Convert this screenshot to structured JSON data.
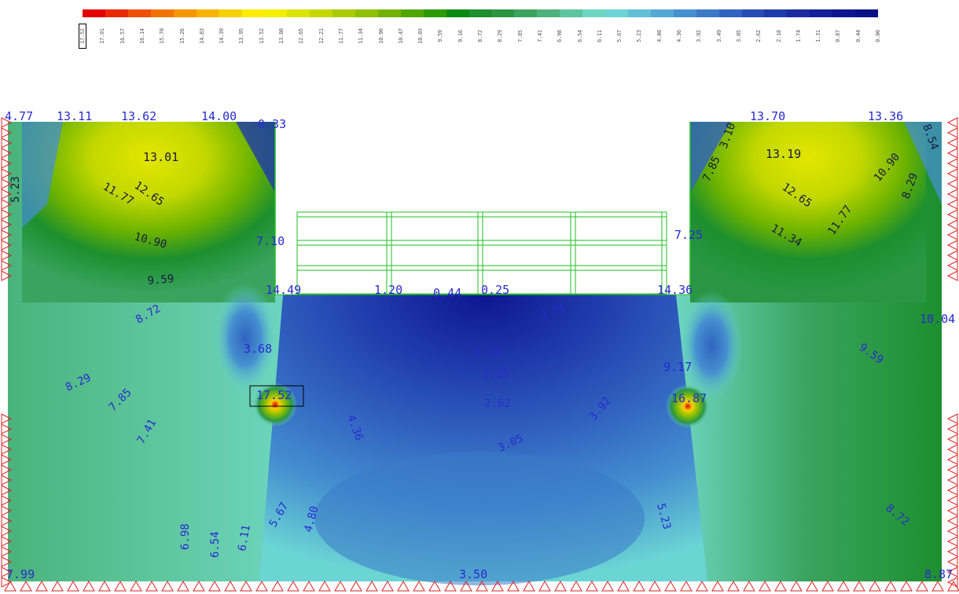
{
  "legend": {
    "colors": [
      "#e30000",
      "#ea2a00",
      "#f04f00",
      "#f27400",
      "#f69600",
      "#f7b300",
      "#f7d000",
      "#fbec00",
      "#f2ef00",
      "#dbe300",
      "#c4d800",
      "#a9cb00",
      "#8fc000",
      "#71b300",
      "#52a600",
      "#2d9a00",
      "#0a8a12",
      "#1c8f2e",
      "#2a9644",
      "#3aa35e",
      "#4ab37c",
      "#5dc59b",
      "#6dd6c0",
      "#6bd5d4",
      "#5fc0d6",
      "#52a9d6",
      "#4590d0",
      "#3a7ac8",
      "#3163c0",
      "#284cb6",
      "#1f3aab",
      "#1a2ca0",
      "#13209a",
      "#0d1690",
      "#081087"
    ],
    "labels": [
      "17.52",
      "17.01",
      "16.57",
      "16.14",
      "15.70",
      "15.26",
      "14.83",
      "14.39",
      "13.95",
      "13.52",
      "13.08",
      "12.65",
      "12.21",
      "11.77",
      "11.34",
      "10.90",
      "10.47",
      "10.03",
      "9.59",
      "9.16",
      "8.72",
      "8.29",
      "7.85",
      "7.41",
      "6.98",
      "6.54",
      "6.11",
      "5.67",
      "5.23",
      "4.80",
      "4.36",
      "3.92",
      "3.49",
      "3.05",
      "2.62",
      "2.18",
      "1.74",
      "1.31",
      "0.87",
      "0.44",
      "0.00"
    ]
  },
  "field_labels": {
    "top_left_corner": "4.77",
    "top_l1": "13.11",
    "top_l2": "13.62",
    "top_l3": "14.00",
    "top_l4": "0.33",
    "top_r1": "13.70",
    "top_r2": "13.36",
    "left_wall": "7.10",
    "right_wall": "7.25",
    "left_toe": "14.49",
    "right_toe": "14.36",
    "exc_1": "1.20",
    "exc_2": "0.44",
    "exc_3": "0.25",
    "exc_4": "1.31",
    "left_anchor": "3.68",
    "left_peak": "17.52",
    "right_anchor": "9.17",
    "right_peak": "16.87",
    "right_edge": "10.04",
    "bottom_left": "7.99",
    "bottom_mid": "3.50",
    "bottom_right": "8.87",
    "lz_13_01": "13.01",
    "lz_12_65": "12.65",
    "lz_11_77": "11.77",
    "lz_10_90": "10.90",
    "lz_9_59": "9.59",
    "lz_8_72": "8.72",
    "lz_8_29": "8.29",
    "lz_7_85": "7.85",
    "lz_7_41": "7.41",
    "lz_6_98": "6.98",
    "lz_6_54": "6.54",
    "lz_6_11": "6.11",
    "lz_5_67": "5.67",
    "lz_4_80": "4.80",
    "lz_4_36": "4.36",
    "lz_5_23_left": "5.23",
    "cz_1_74": "1.74",
    "cz_2_18": "2.18",
    "cz_2_62": "2.62",
    "cz_3_05": "3.05",
    "cz_3_92": "3.92",
    "cz_5_23": "5.23",
    "rz_13_19": "13.19",
    "rz_12_65": "12.65",
    "rz_11_77": "11.77",
    "rz_11_34": "11.34",
    "rz_10_90": "10.90",
    "rz_8_29": "8.29",
    "rz_7_85": "7.85",
    "rz_9_59": "9.59",
    "rz_8_72": "8.72",
    "rz_8_54": "8.54",
    "rz_3_10": "3.10"
  }
}
